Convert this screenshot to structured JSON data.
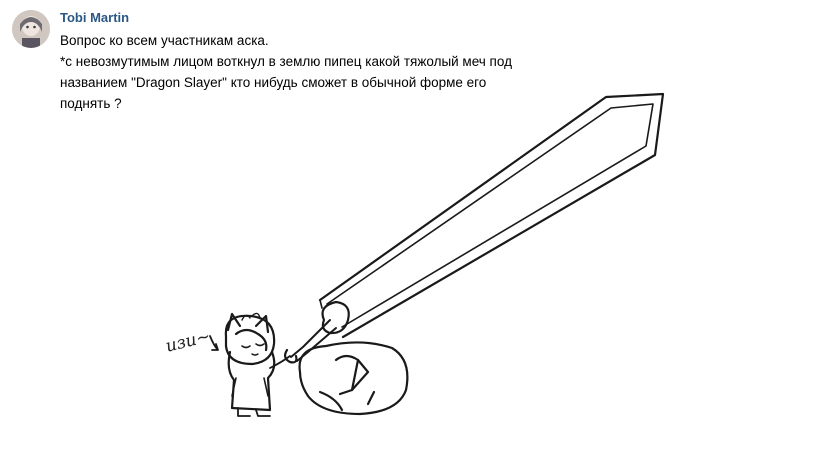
{
  "author": {
    "name": "Tobi Martin"
  },
  "avatar": {
    "icon": "user-avatar"
  },
  "message": {
    "lines": [
      "Вопрос ко всем участникам аска.",
      "*с невозмутимым лицом воткнул в землю пипец какой тяжолый меч под",
      "названием \"Dragon Slayer\" кто нибудь сможет в обычной форме его",
      "поднять ?"
    ]
  },
  "drawing": {
    "caption": "изи~",
    "colors": {
      "ink": "#1a1a1a",
      "paper": "#ffffff"
    }
  }
}
